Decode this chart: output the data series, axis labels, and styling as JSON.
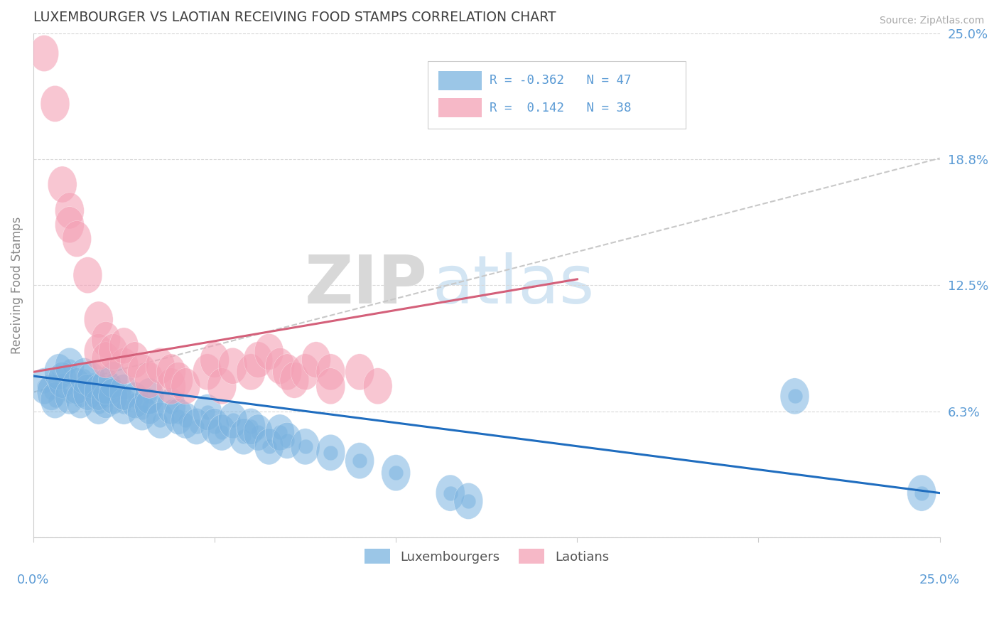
{
  "title": "LUXEMBOURGER VS LAOTIAN RECEIVING FOOD STAMPS CORRELATION CHART",
  "source": "Source: ZipAtlas.com",
  "ylabel": "Receiving Food Stamps",
  "y_tick_positions": [
    0.0,
    0.0625,
    0.125,
    0.1875,
    0.25
  ],
  "y_tick_labels": [
    "",
    "6.3%",
    "12.5%",
    "18.8%",
    "25.0%"
  ],
  "x_tick_positions": [
    0.0,
    0.05,
    0.1,
    0.15,
    0.2,
    0.25
  ],
  "xlim": [
    0.0,
    0.25
  ],
  "ylim": [
    0.0,
    0.25
  ],
  "blue_color": "#7ab3e0",
  "pink_color": "#f4a0b5",
  "trend_blue_color": "#1f6dbf",
  "trend_pink_color": "#d4607a",
  "trend_gray_color": "#c8c8c8",
  "background_color": "#ffffff",
  "grid_color": "#d8d8d8",
  "title_color": "#404040",
  "axis_tick_color": "#5b9bd5",
  "ylabel_color": "#888888",
  "watermark_zip": "ZIP",
  "watermark_atlas": "atlas",
  "legend_r_blue": "R = -0.362",
  "legend_n_blue": "N = 47",
  "legend_r_pink": "R =  0.142",
  "legend_n_pink": "N = 38",
  "lux_scatter": [
    [
      0.003,
      0.075
    ],
    [
      0.005,
      0.072
    ],
    [
      0.006,
      0.068
    ],
    [
      0.007,
      0.082
    ],
    [
      0.008,
      0.078
    ],
    [
      0.01,
      0.085
    ],
    [
      0.01,
      0.07
    ],
    [
      0.012,
      0.075
    ],
    [
      0.013,
      0.068
    ],
    [
      0.014,
      0.08
    ],
    [
      0.015,
      0.072
    ],
    [
      0.016,
      0.078
    ],
    [
      0.018,
      0.065
    ],
    [
      0.018,
      0.072
    ],
    [
      0.02,
      0.068
    ],
    [
      0.02,
      0.075
    ],
    [
      0.022,
      0.078
    ],
    [
      0.022,
      0.07
    ],
    [
      0.025,
      0.065
    ],
    [
      0.025,
      0.072
    ],
    [
      0.028,
      0.068
    ],
    [
      0.03,
      0.062
    ],
    [
      0.032,
      0.07
    ],
    [
      0.032,
      0.065
    ],
    [
      0.035,
      0.058
    ],
    [
      0.038,
      0.065
    ],
    [
      0.04,
      0.06
    ],
    [
      0.042,
      0.058
    ],
    [
      0.045,
      0.055
    ],
    [
      0.048,
      0.062
    ],
    [
      0.05,
      0.055
    ],
    [
      0.052,
      0.052
    ],
    [
      0.055,
      0.058
    ],
    [
      0.058,
      0.05
    ],
    [
      0.06,
      0.055
    ],
    [
      0.062,
      0.052
    ],
    [
      0.065,
      0.045
    ],
    [
      0.068,
      0.052
    ],
    [
      0.07,
      0.048
    ],
    [
      0.075,
      0.045
    ],
    [
      0.082,
      0.042
    ],
    [
      0.09,
      0.038
    ],
    [
      0.1,
      0.032
    ],
    [
      0.115,
      0.022
    ],
    [
      0.12,
      0.018
    ],
    [
      0.21,
      0.07
    ],
    [
      0.245,
      0.022
    ]
  ],
  "lao_scatter": [
    [
      0.003,
      0.24
    ],
    [
      0.006,
      0.215
    ],
    [
      0.008,
      0.175
    ],
    [
      0.01,
      0.162
    ],
    [
      0.01,
      0.155
    ],
    [
      0.012,
      0.148
    ],
    [
      0.015,
      0.13
    ],
    [
      0.018,
      0.108
    ],
    [
      0.018,
      0.092
    ],
    [
      0.02,
      0.098
    ],
    [
      0.02,
      0.088
    ],
    [
      0.022,
      0.092
    ],
    [
      0.025,
      0.085
    ],
    [
      0.025,
      0.095
    ],
    [
      0.028,
      0.088
    ],
    [
      0.03,
      0.082
    ],
    [
      0.032,
      0.078
    ],
    [
      0.035,
      0.085
    ],
    [
      0.038,
      0.075
    ],
    [
      0.038,
      0.082
    ],
    [
      0.04,
      0.078
    ],
    [
      0.042,
      0.075
    ],
    [
      0.048,
      0.082
    ],
    [
      0.05,
      0.088
    ],
    [
      0.052,
      0.075
    ],
    [
      0.055,
      0.085
    ],
    [
      0.06,
      0.082
    ],
    [
      0.062,
      0.088
    ],
    [
      0.065,
      0.092
    ],
    [
      0.068,
      0.085
    ],
    [
      0.07,
      0.082
    ],
    [
      0.072,
      0.078
    ],
    [
      0.075,
      0.082
    ],
    [
      0.078,
      0.088
    ],
    [
      0.082,
      0.082
    ],
    [
      0.082,
      0.075
    ],
    [
      0.09,
      0.082
    ],
    [
      0.095,
      0.075
    ]
  ],
  "blue_trend_x0": 0.0,
  "blue_trend_y0": 0.08,
  "blue_trend_x1": 0.25,
  "blue_trend_y1": 0.022,
  "pink_trend_x0": 0.0,
  "pink_trend_y0": 0.082,
  "pink_trend_x1": 0.15,
  "pink_trend_y1": 0.128,
  "gray_trend_x0": 0.0,
  "gray_trend_y0": 0.072,
  "gray_trend_x1": 0.25,
  "gray_trend_y1": 0.188
}
